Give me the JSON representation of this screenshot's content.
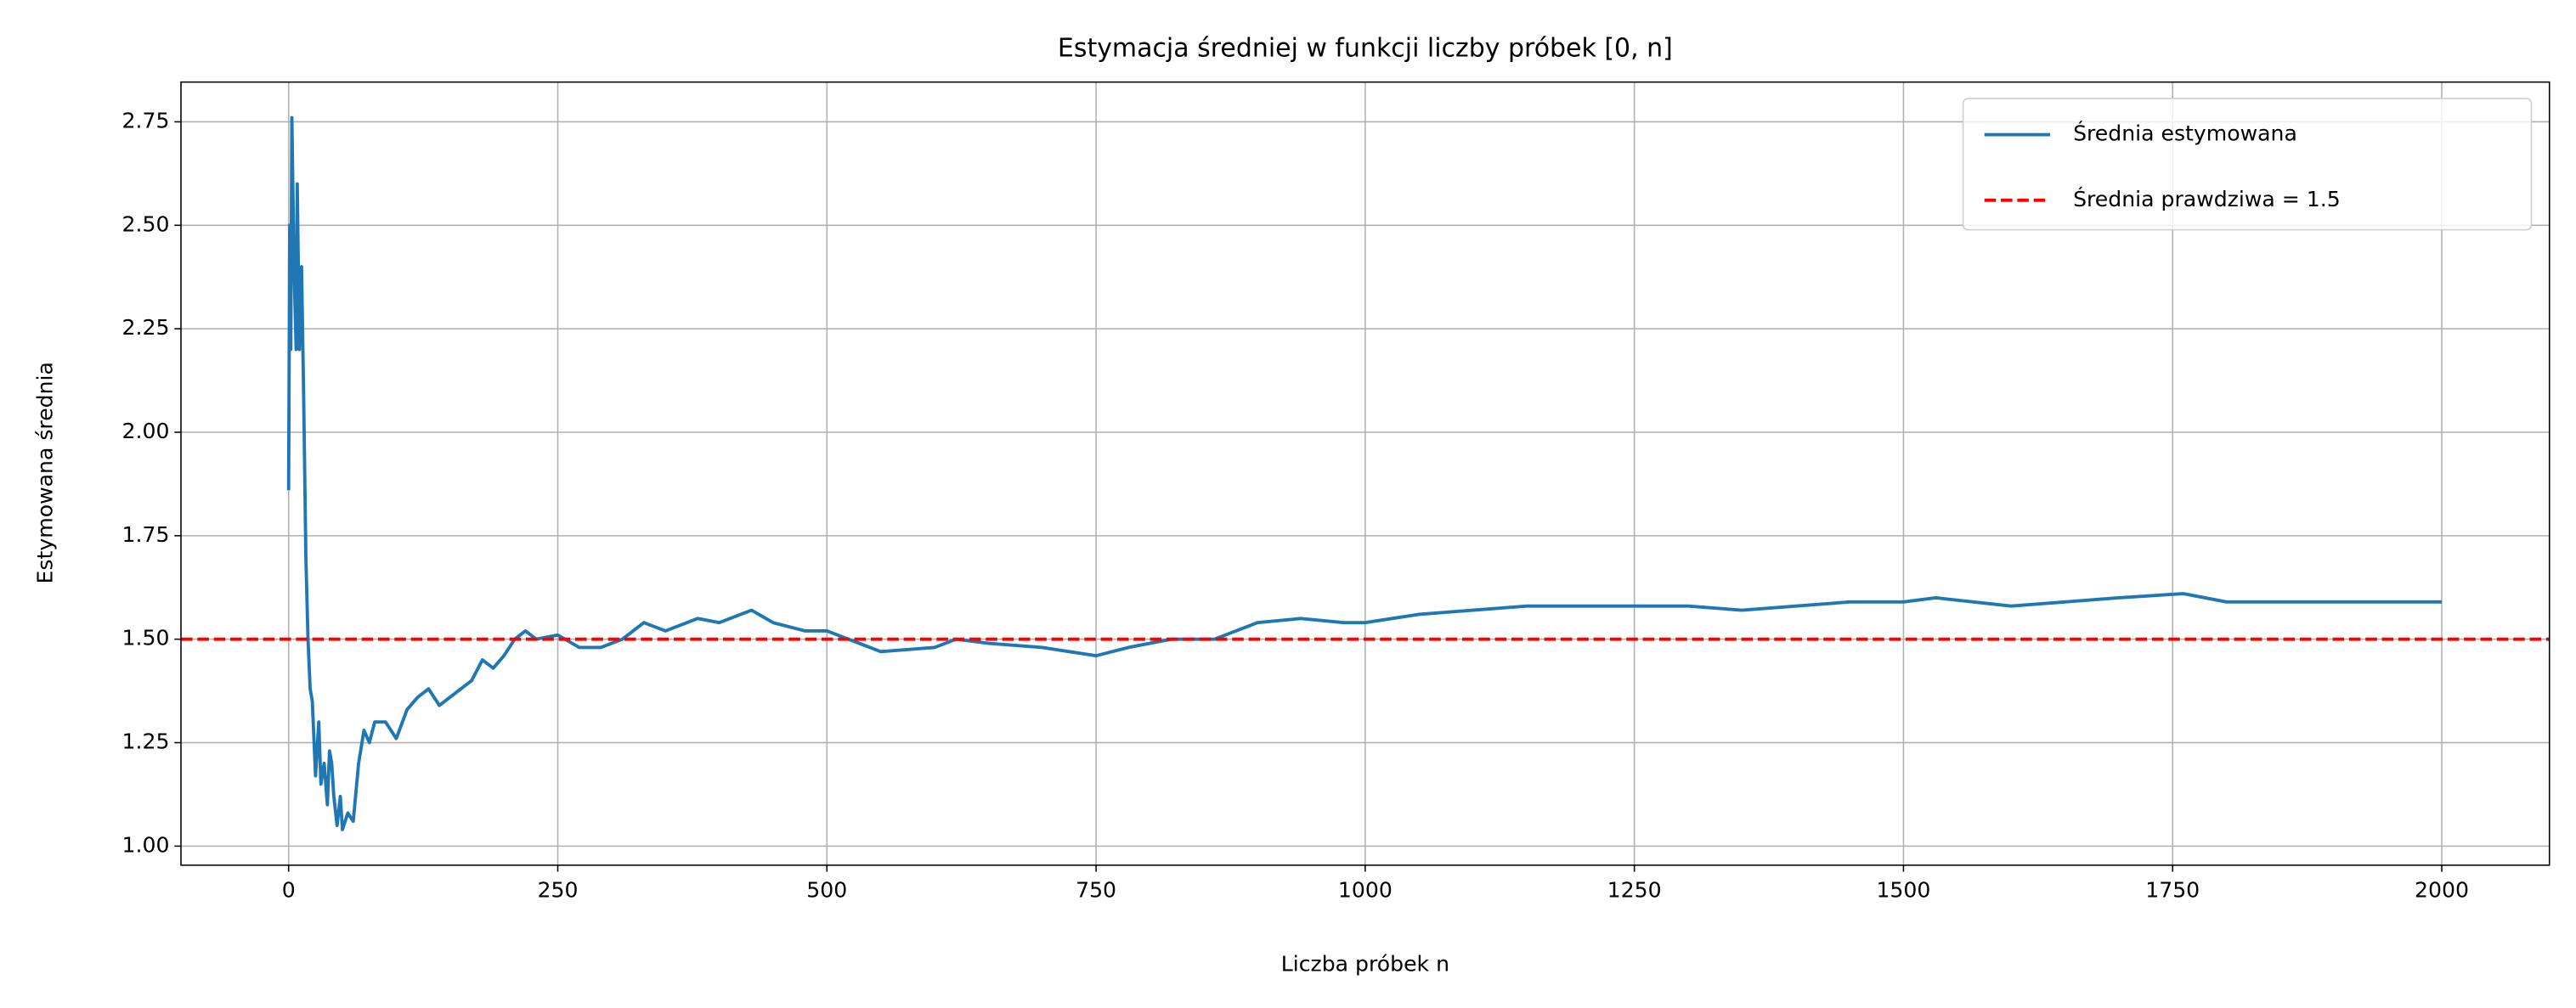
{
  "chart_data": {
    "type": "line",
    "title": "Estymacja średniej w funkcji liczby próbek [0, n]",
    "x_label": "Liczba próbek n",
    "y_label": "Estymowana średnia",
    "xlim": [
      -100,
      2100
    ],
    "ylim": [
      0.954,
      2.846
    ],
    "xticks": [
      0,
      250,
      500,
      750,
      1000,
      1250,
      1500,
      1750,
      2000
    ],
    "yticks": [
      {
        "value": 1.0,
        "label": "1.00"
      },
      {
        "value": 1.25,
        "label": "1.25"
      },
      {
        "value": 1.5,
        "label": "1.50"
      },
      {
        "value": 1.75,
        "label": "1.75"
      },
      {
        "value": 2.0,
        "label": "2.00"
      },
      {
        "value": 2.25,
        "label": "2.25"
      },
      {
        "value": 2.5,
        "label": "2.50"
      },
      {
        "value": 2.75,
        "label": "2.75"
      }
    ],
    "grid": true,
    "legend": "upper right",
    "series": [
      {
        "name": "Średnia estymowana",
        "color": "#1f77b4",
        "x": [
          0,
          1,
          2,
          3,
          5,
          7,
          8,
          10,
          12,
          14,
          16,
          18,
          20,
          22,
          25,
          28,
          30,
          33,
          36,
          38,
          40,
          42,
          45,
          48,
          50,
          55,
          60,
          65,
          70,
          75,
          80,
          90,
          100,
          110,
          120,
          130,
          140,
          150,
          160,
          170,
          180,
          190,
          200,
          210,
          220,
          230,
          250,
          270,
          290,
          310,
          330,
          350,
          380,
          400,
          430,
          450,
          480,
          500,
          520,
          550,
          600,
          620,
          650,
          700,
          750,
          780,
          820,
          860,
          900,
          940,
          980,
          1000,
          1050,
          1100,
          1150,
          1200,
          1250,
          1300,
          1350,
          1400,
          1450,
          1500,
          1530,
          1600,
          1650,
          1700,
          1760,
          1800,
          1850,
          1900,
          1950,
          2000
        ],
        "values": [
          1.86,
          2.5,
          2.2,
          2.76,
          2.4,
          2.2,
          2.6,
          2.2,
          2.4,
          2.08,
          1.7,
          1.5,
          1.38,
          1.35,
          1.17,
          1.3,
          1.15,
          1.2,
          1.1,
          1.23,
          1.2,
          1.12,
          1.05,
          1.12,
          1.04,
          1.08,
          1.06,
          1.2,
          1.28,
          1.25,
          1.3,
          1.3,
          1.26,
          1.33,
          1.36,
          1.38,
          1.34,
          1.36,
          1.38,
          1.4,
          1.45,
          1.43,
          1.46,
          1.5,
          1.52,
          1.5,
          1.51,
          1.48,
          1.48,
          1.5,
          1.54,
          1.52,
          1.55,
          1.54,
          1.57,
          1.54,
          1.52,
          1.52,
          1.5,
          1.47,
          1.48,
          1.5,
          1.49,
          1.48,
          1.46,
          1.48,
          1.5,
          1.5,
          1.54,
          1.55,
          1.54,
          1.54,
          1.56,
          1.57,
          1.58,
          1.58,
          1.58,
          1.58,
          1.57,
          1.58,
          1.59,
          1.59,
          1.6,
          1.58,
          1.59,
          1.6,
          1.61,
          1.59,
          1.59,
          1.59,
          1.59,
          1.59
        ]
      }
    ],
    "hlines": [
      {
        "name": "Średnia prawdziwa = 1.5",
        "value": 1.5,
        "color": "#ff0000",
        "style": "dashed"
      }
    ]
  }
}
